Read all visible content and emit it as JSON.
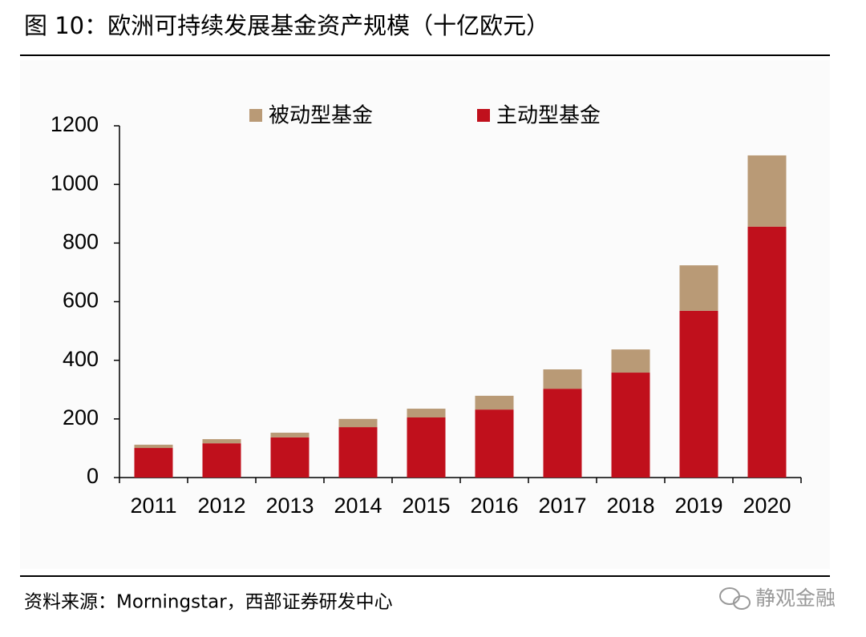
{
  "title": "图 10：欧洲可持续发展基金资产规模（十亿欧元）",
  "source": "资料来源：Morningstar，西部证券研发中心",
  "watermark": "静观金融",
  "chart_data": {
    "type": "stacked_bar",
    "categories": [
      "2011",
      "2012",
      "2013",
      "2014",
      "2015",
      "2016",
      "2017",
      "2018",
      "2019",
      "2020"
    ],
    "series": [
      {
        "name": "被动型基金",
        "color": "#b99a76",
        "values": [
          11,
          14,
          16,
          28,
          30,
          47,
          66,
          79,
          155,
          243
        ]
      },
      {
        "name": "主动型基金",
        "color": "#c0101c",
        "values": [
          101,
          117,
          137,
          172,
          205,
          232,
          303,
          358,
          569,
          856
        ]
      }
    ],
    "ylim": [
      0,
      1200
    ],
    "yticks": [
      0,
      200,
      400,
      600,
      800,
      1000,
      1200
    ]
  }
}
